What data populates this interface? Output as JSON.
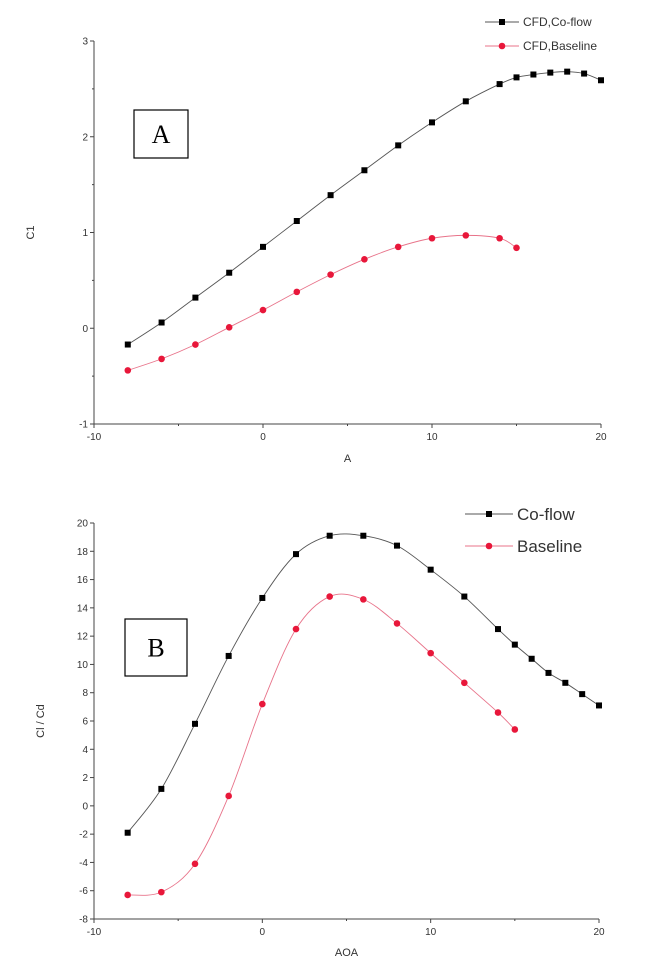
{
  "chart_data": [
    {
      "type": "line",
      "panel_label": "A",
      "xlabel": "A",
      "ylabel": "C1",
      "xlim": [
        -10,
        20
      ],
      "ylim": [
        -1,
        3
      ],
      "xticks": [
        -10,
        0,
        10,
        20
      ],
      "yticks": [
        -1,
        0,
        1,
        2,
        3
      ],
      "legend_position": "top-right",
      "series": [
        {
          "name": "CFD,Co-flow",
          "color": "#000000",
          "marker": "square",
          "x": [
            -8,
            -6,
            -4,
            -2,
            0,
            2,
            4,
            6,
            8,
            10,
            12,
            14,
            15,
            16,
            17,
            18,
            19,
            20
          ],
          "y": [
            -0.17,
            0.06,
            0.32,
            0.58,
            0.85,
            1.12,
            1.39,
            1.65,
            1.91,
            2.15,
            2.37,
            2.55,
            2.62,
            2.65,
            2.67,
            2.68,
            2.66,
            2.59
          ]
        },
        {
          "name": "CFD,Baseline",
          "color": "#e8173a",
          "marker": "circle",
          "x": [
            -8,
            -6,
            -4,
            -2,
            0,
            2,
            4,
            6,
            8,
            10,
            12,
            14,
            15
          ],
          "y": [
            -0.44,
            -0.32,
            -0.17,
            0.01,
            0.19,
            0.38,
            0.56,
            0.72,
            0.85,
            0.94,
            0.97,
            0.94,
            0.84
          ]
        }
      ]
    },
    {
      "type": "line",
      "panel_label": "B",
      "xlabel": "AOA",
      "ylabel": "Cl / Cd",
      "xlim": [
        -10,
        20
      ],
      "ylim": [
        -8,
        20
      ],
      "xticks": [
        -10,
        0,
        10,
        20
      ],
      "yticks": [
        -8,
        -6,
        -4,
        -2,
        0,
        2,
        4,
        6,
        8,
        10,
        12,
        14,
        16,
        18,
        20
      ],
      "legend_position": "top-right",
      "series": [
        {
          "name": "Co-flow",
          "color": "#000000",
          "marker": "square",
          "x": [
            -8,
            -6,
            -4,
            -2,
            0,
            2,
            4,
            6,
            8,
            10,
            12,
            14,
            15,
            16,
            17,
            18,
            19,
            20
          ],
          "y": [
            -1.9,
            1.2,
            5.8,
            10.6,
            14.7,
            17.8,
            19.1,
            19.1,
            18.4,
            16.7,
            14.8,
            12.5,
            11.4,
            10.4,
            9.4,
            8.7,
            7.9,
            7.1
          ]
        },
        {
          "name": "Baseline",
          "color": "#e8173a",
          "marker": "circle",
          "x": [
            -8,
            -6,
            -4,
            -2,
            0,
            2,
            4,
            6,
            8,
            10,
            12,
            14,
            15
          ],
          "y": [
            -6.3,
            -6.1,
            -4.1,
            0.7,
            7.2,
            12.5,
            14.8,
            14.6,
            12.9,
            10.8,
            8.7,
            6.6,
            5.4
          ]
        }
      ]
    }
  ]
}
